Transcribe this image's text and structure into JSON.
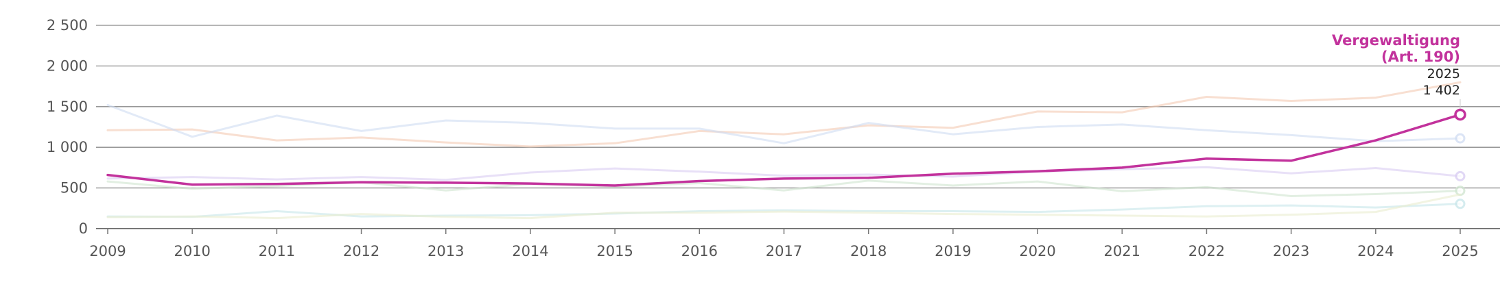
{
  "chart_data": {
    "type": "line",
    "x": [
      "2009",
      "2010",
      "2011",
      "2012",
      "2013",
      "2014",
      "2015",
      "2016",
      "2017",
      "2018",
      "2019",
      "2020",
      "2021",
      "2022",
      "2023",
      "2024",
      "2025"
    ],
    "ylim": [
      0,
      2500
    ],
    "yticks": [
      0,
      500,
      1000,
      1500,
      2000,
      2500
    ],
    "ytick_labels": [
      "0",
      "500",
      "1 000",
      "1 500",
      "2 000",
      "2 500"
    ],
    "grid": true,
    "highlighted_series": 0,
    "series": [
      {
        "name": "Vergewaltigung (Art. 190)",
        "color": "#c2329c",
        "values": [
          660,
          540,
          550,
          570,
          565,
          555,
          530,
          585,
          615,
          625,
          675,
          705,
          750,
          860,
          835,
          1085,
          1402
        ]
      },
      {
        "color": "#f4c9b2",
        "values": [
          1210,
          1220,
          1085,
          1120,
          1060,
          1010,
          1050,
          1200,
          1160,
          1270,
          1240,
          1440,
          1430,
          1620,
          1570,
          1610,
          1800
        ]
      },
      {
        "color": "#cfdcf2",
        "values": [
          1520,
          1130,
          1390,
          1200,
          1330,
          1300,
          1230,
          1230,
          1050,
          1300,
          1160,
          1250,
          1280,
          1210,
          1150,
          1075,
          1110
        ]
      },
      {
        "color": "#d8ccf2",
        "values": [
          615,
          635,
          605,
          635,
          600,
          690,
          740,
          700,
          650,
          665,
          640,
          700,
          730,
          755,
          680,
          745,
          645
        ]
      },
      {
        "color": "#cfe5cf",
        "values": [
          580,
          490,
          525,
          570,
          470,
          550,
          520,
          560,
          470,
          590,
          530,
          580,
          460,
          510,
          400,
          425,
          465
        ]
      },
      {
        "color": "#c7e6ea",
        "values": [
          150,
          145,
          215,
          150,
          160,
          165,
          185,
          215,
          225,
          215,
          215,
          205,
          235,
          275,
          285,
          260,
          305
        ]
      },
      {
        "color": "#e9ecce",
        "values": [
          140,
          150,
          130,
          180,
          145,
          130,
          195,
          195,
          210,
          195,
          180,
          170,
          160,
          150,
          170,
          205,
          420
        ]
      }
    ]
  },
  "annotation": {
    "title_line1": "Vergewaltigung",
    "title_line2": "(Art. 190)",
    "year": "2025",
    "value": "1 402"
  }
}
